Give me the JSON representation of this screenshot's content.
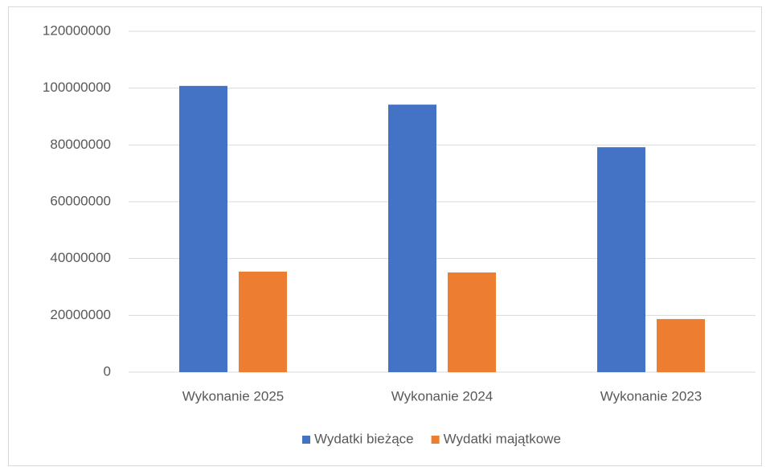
{
  "chart_data": {
    "type": "bar",
    "categories": [
      "Wykonanie 2025",
      "Wykonanie 2024",
      "Wykonanie 2023"
    ],
    "series": [
      {
        "name": "Wydatki bieżące",
        "color": "#4472c4",
        "values": [
          100800000,
          94200000,
          79200000
        ]
      },
      {
        "name": "Wydatki majątkowe",
        "color": "#ed7d31",
        "values": [
          35400000,
          35100000,
          18700000
        ]
      }
    ],
    "ylim": [
      0,
      120000000
    ],
    "yticks": [
      0,
      20000000,
      40000000,
      60000000,
      80000000,
      100000000,
      120000000
    ],
    "grid": true,
    "legend": "bottom"
  }
}
